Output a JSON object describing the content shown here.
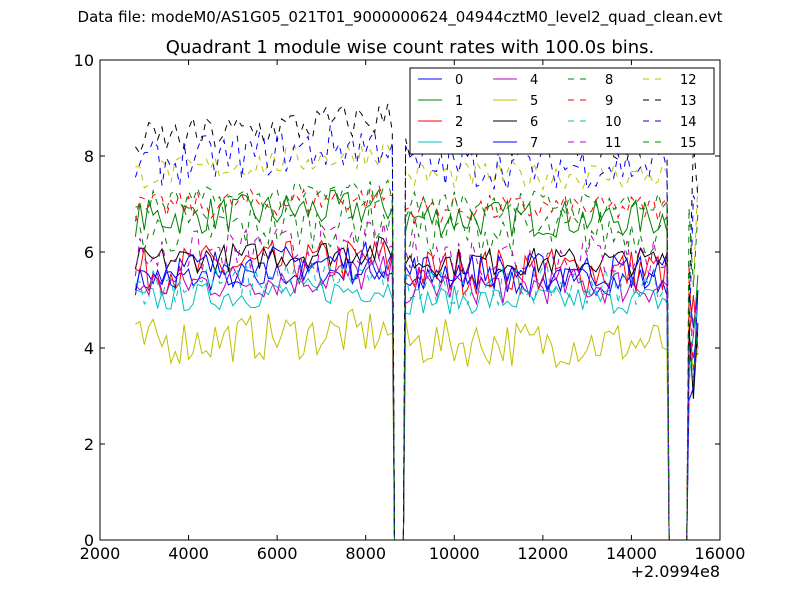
{
  "suptitle": "Data file: modeM0/AS1G05_021T01_9000000624_04944cztM0_level2_quad_clean.evt",
  "chart_data": {
    "type": "line",
    "title": "Quadrant 1 module wise count rates with 100.0s bins.",
    "xlabel": "",
    "ylabel": "",
    "xlim": [
      2000,
      16000
    ],
    "ylim": [
      0,
      10
    ],
    "x_offset_label": "+2.0994e8",
    "x_ticks": [
      2000,
      4000,
      6000,
      8000,
      10000,
      12000,
      14000,
      16000
    ],
    "x_tick_labels": [
      "2000",
      "4000",
      "6000",
      "8000",
      "10000",
      "12000",
      "14000",
      "16000"
    ],
    "y_ticks": [
      0,
      2,
      4,
      6,
      8,
      10
    ],
    "y_tick_labels": [
      "0",
      "2",
      "4",
      "6",
      "8",
      "10"
    ],
    "legend_position": "top-right",
    "segments": [
      {
        "start": 2800,
        "end": 8600
      },
      {
        "start": 8900,
        "end": 14800
      },
      {
        "start": 15300,
        "end": 15500
      }
    ],
    "gap_points": [
      [
        8650,
        0
      ],
      [
        8850,
        0
      ],
      [
        14850,
        0
      ],
      [
        15250,
        0
      ]
    ],
    "series": [
      {
        "name": "0",
        "color": "#0000ff",
        "dash": "solid",
        "level": 5.4
      },
      {
        "name": "1",
        "color": "#008000",
        "dash": "solid",
        "level": 6.7
      },
      {
        "name": "2",
        "color": "#ff0000",
        "dash": "solid",
        "level": 5.6
      },
      {
        "name": "3",
        "color": "#00bfbf",
        "dash": "solid",
        "level": 5.0
      },
      {
        "name": "4",
        "color": "#bf00bf",
        "dash": "solid",
        "level": 5.3
      },
      {
        "name": "5",
        "color": "#bfbf00",
        "dash": "solid",
        "level": 4.1
      },
      {
        "name": "6",
        "color": "#000000",
        "dash": "solid",
        "level": 5.8
      },
      {
        "name": "7",
        "color": "#0000ff",
        "dash": "solid",
        "level": 5.6
      },
      {
        "name": "8",
        "color": "#008000",
        "dash": "dashed",
        "level": 6.4
      },
      {
        "name": "9",
        "color": "#ff0000",
        "dash": "dashed",
        "level": 6.9
      },
      {
        "name": "10",
        "color": "#00bfbf",
        "dash": "dashed",
        "level": 5.3
      },
      {
        "name": "11",
        "color": "#bf00bf",
        "dash": "dashed",
        "level": 5.9
      },
      {
        "name": "12",
        "color": "#bfbf00",
        "dash": "dashed",
        "level": 7.6
      },
      {
        "name": "13",
        "color": "#000000",
        "dash": "dashed",
        "level": 8.3
      },
      {
        "name": "14",
        "color": "#0000ff",
        "dash": "dashed",
        "level": 7.8
      },
      {
        "name": "15",
        "color": "#008000",
        "dash": "dashed",
        "level": 7.0
      }
    ]
  }
}
